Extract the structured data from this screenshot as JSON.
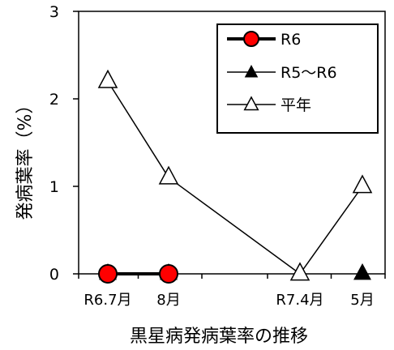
{
  "chart_data": {
    "type": "line",
    "categories": [
      "R6.7月",
      "8月",
      "",
      "R7.4月",
      "5月"
    ],
    "xlabel": "黒星病発病葉率の推移",
    "ylabel": "発病葉率（%）",
    "ylim": [
      0,
      3
    ],
    "yticks": [
      0,
      1,
      2,
      3
    ],
    "grid": false,
    "legend_position": "top-right",
    "series": [
      {
        "name": "R6",
        "marker": "circle",
        "color": "#ff0000",
        "values": [
          0,
          0,
          null,
          null,
          null
        ]
      },
      {
        "name": "R5～R6",
        "marker": "triangle-filled",
        "color": "#000000",
        "values": [
          0,
          0,
          null,
          null,
          0
        ]
      },
      {
        "name": "平年",
        "marker": "triangle-open",
        "color": "#000000",
        "values": [
          2.2,
          1.1,
          null,
          0,
          1.0
        ]
      }
    ]
  }
}
